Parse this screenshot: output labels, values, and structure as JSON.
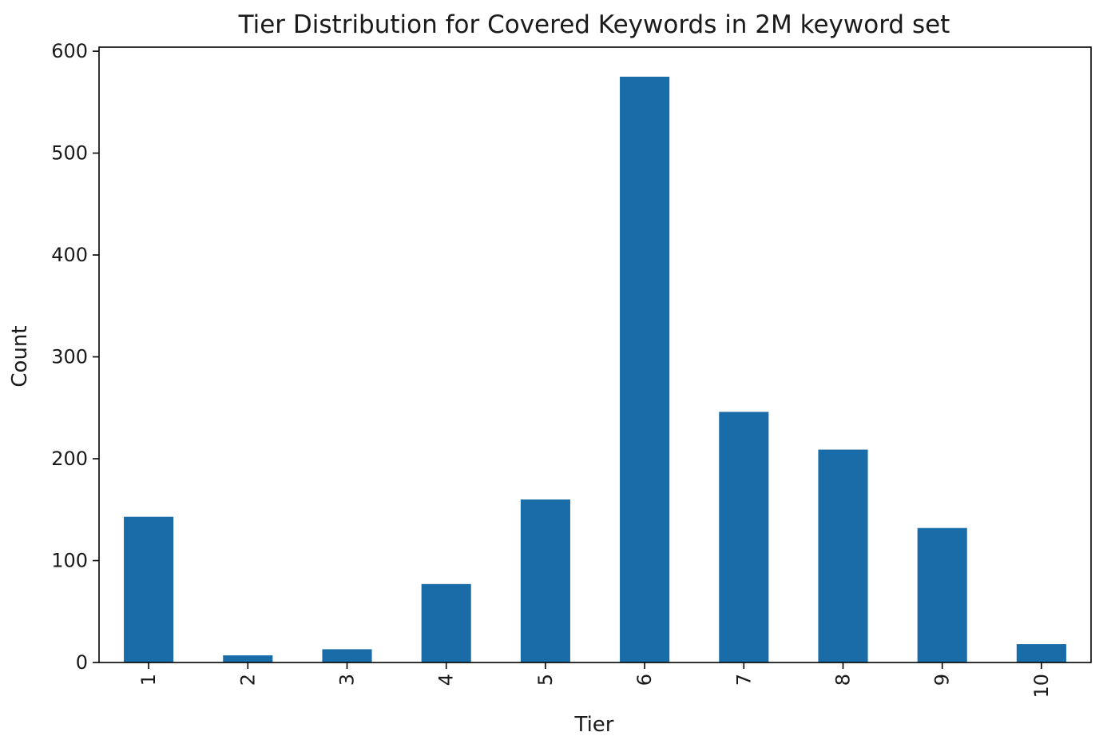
{
  "chart_data": {
    "type": "bar",
    "title": "Tier Distribution for Covered Keywords in 2M keyword set",
    "xlabel": "Tier",
    "ylabel": "Count",
    "categories": [
      "1",
      "2",
      "3",
      "4",
      "5",
      "6",
      "7",
      "8",
      "9",
      "10"
    ],
    "values": [
      143,
      7,
      13,
      77,
      160,
      575,
      246,
      209,
      132,
      18
    ],
    "ylim": [
      0,
      604
    ],
    "yticks": [
      0,
      100,
      200,
      300,
      400,
      500,
      600
    ],
    "xtick_rotation": "vertical",
    "grid": false,
    "legend": "none",
    "bar_color": "#1a6ca8",
    "axis_color": "#000000"
  }
}
